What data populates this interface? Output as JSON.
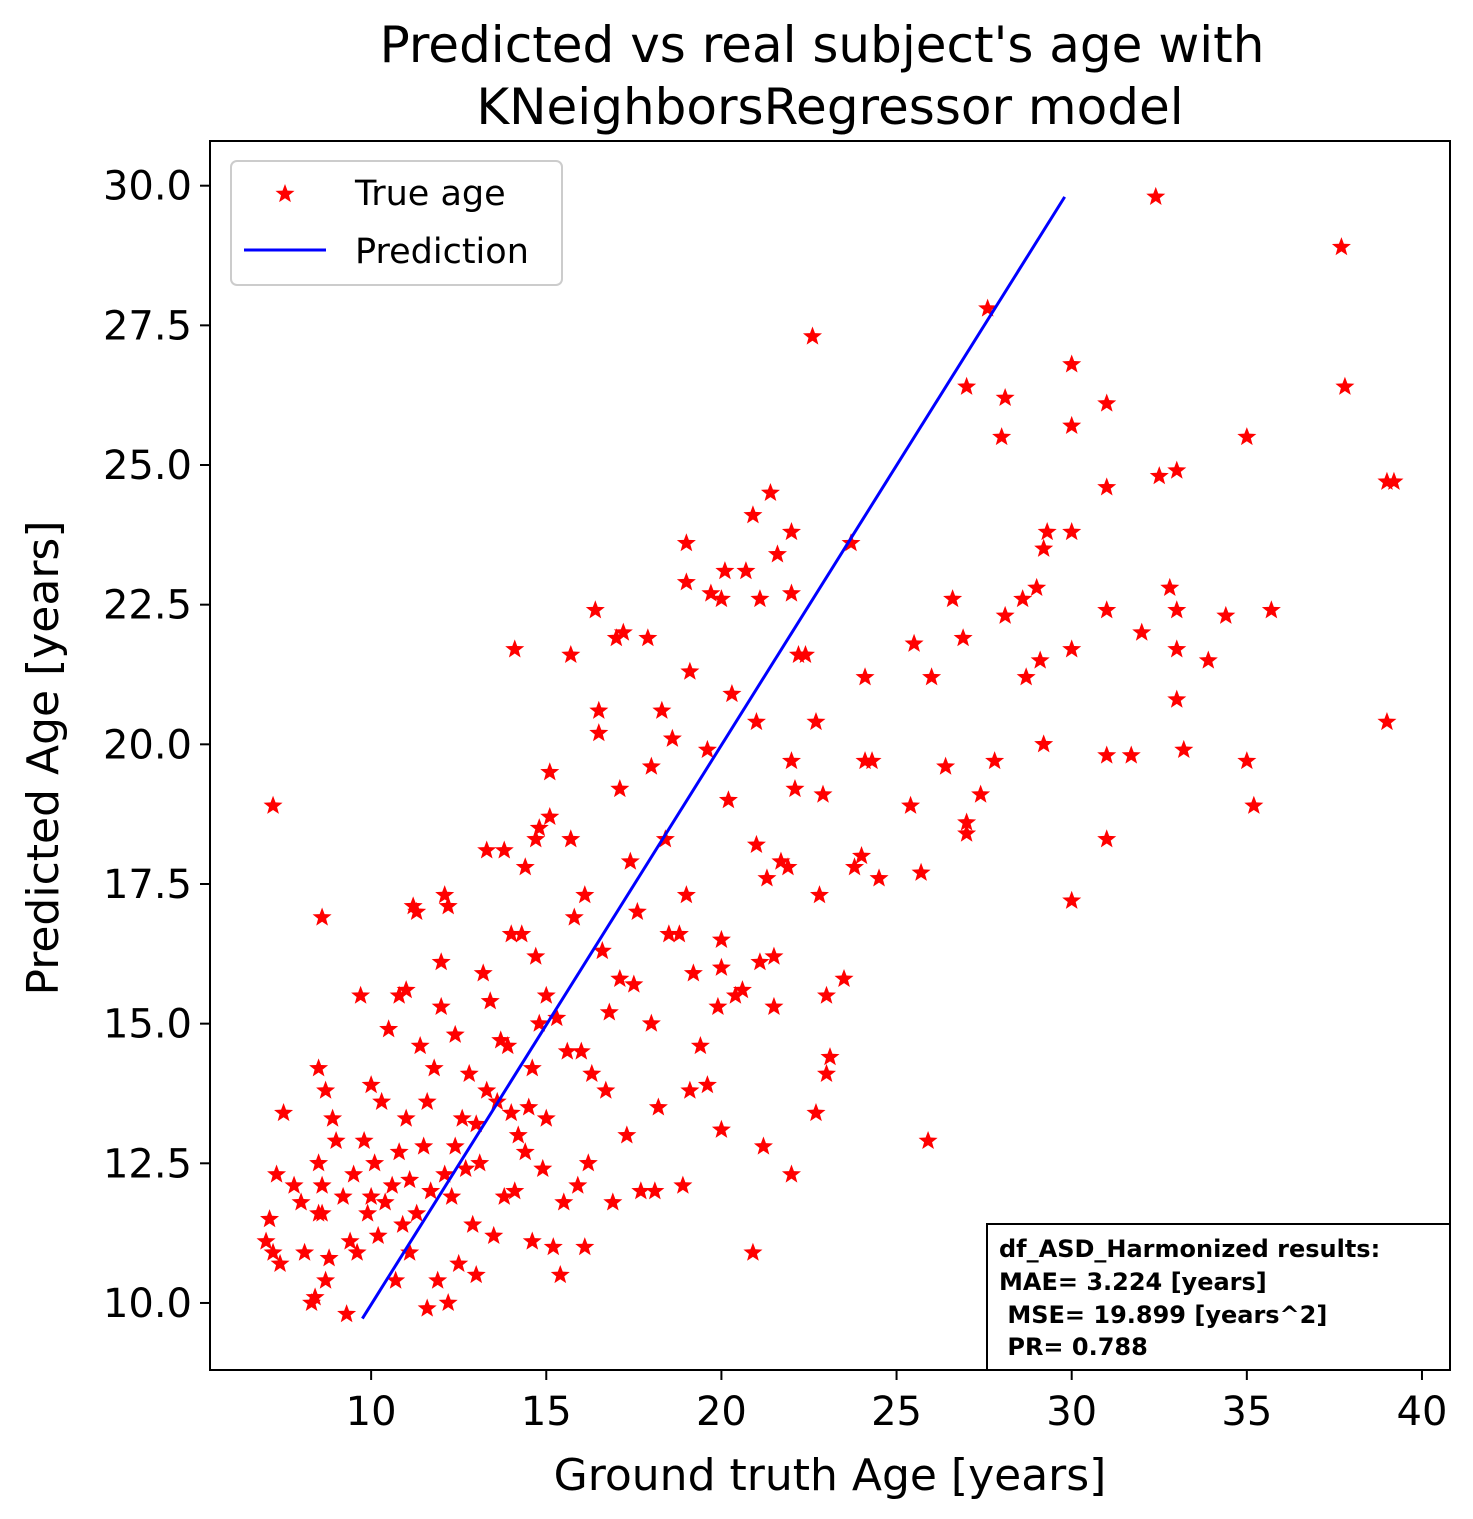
{
  "chart_data": {
    "type": "scatter",
    "title_lines": [
      "Predicted vs real subject's age with",
      "KNeighborsRegressor model"
    ],
    "xlabel": "Ground truth Age [years]",
    "ylabel": "Predicted Age [years]",
    "xlim": [
      5.4,
      40.8
    ],
    "ylim": [
      8.8,
      30.8
    ],
    "xticks": [
      10,
      15,
      20,
      25,
      30,
      35,
      40
    ],
    "xtick_labels": [
      "10",
      "15",
      "20",
      "25",
      "30",
      "35",
      "40"
    ],
    "yticks": [
      10.0,
      12.5,
      15.0,
      17.5,
      20.0,
      22.5,
      25.0,
      27.5,
      30.0
    ],
    "ytick_labels": [
      "10.0",
      "12.5",
      "15.0",
      "17.5",
      "20.0",
      "22.5",
      "25.0",
      "27.5",
      "30.0"
    ],
    "grid": false,
    "legend": {
      "placement": "upper-left",
      "entries": [
        {
          "label": "True age",
          "marker": "star",
          "color": "#ff0000"
        },
        {
          "label": "Prediction",
          "marker": "line",
          "color": "#0000ff"
        }
      ]
    },
    "series": [
      {
        "name": "True age",
        "marker": "star",
        "color": "#ff0000",
        "points": [
          [
            7.2,
            18.9
          ],
          [
            7.0,
            11.1
          ],
          [
            7.2,
            10.9
          ],
          [
            7.1,
            11.5
          ],
          [
            7.3,
            12.3
          ],
          [
            7.4,
            10.7
          ],
          [
            7.5,
            13.4
          ],
          [
            7.8,
            12.1
          ],
          [
            8.0,
            11.8
          ],
          [
            8.1,
            10.9
          ],
          [
            8.3,
            10.0
          ],
          [
            8.4,
            10.1
          ],
          [
            8.5,
            11.6
          ],
          [
            8.6,
            11.6
          ],
          [
            8.7,
            10.4
          ],
          [
            8.8,
            10.8
          ],
          [
            8.5,
            12.5
          ],
          [
            8.6,
            12.1
          ],
          [
            8.5,
            14.2
          ],
          [
            8.7,
            13.8
          ],
          [
            8.6,
            16.9
          ],
          [
            8.9,
            13.3
          ],
          [
            9.0,
            12.9
          ],
          [
            9.2,
            11.9
          ],
          [
            9.3,
            9.8
          ],
          [
            9.4,
            11.1
          ],
          [
            9.5,
            12.3
          ],
          [
            9.6,
            10.9
          ],
          [
            9.7,
            15.5
          ],
          [
            9.8,
            12.9
          ],
          [
            9.9,
            11.6
          ],
          [
            10.0,
            11.9
          ],
          [
            10.0,
            13.9
          ],
          [
            10.1,
            12.5
          ],
          [
            10.2,
            11.2
          ],
          [
            10.3,
            13.6
          ],
          [
            10.4,
            11.8
          ],
          [
            10.5,
            14.9
          ],
          [
            10.6,
            12.1
          ],
          [
            10.7,
            10.4
          ],
          [
            10.8,
            12.7
          ],
          [
            10.8,
            15.5
          ],
          [
            10.9,
            11.4
          ],
          [
            11.0,
            13.3
          ],
          [
            11.0,
            15.6
          ],
          [
            11.1,
            10.9
          ],
          [
            11.1,
            12.2
          ],
          [
            11.2,
            17.1
          ],
          [
            11.3,
            11.6
          ],
          [
            11.3,
            17.0
          ],
          [
            11.4,
            14.6
          ],
          [
            11.5,
            12.8
          ],
          [
            11.6,
            9.9
          ],
          [
            11.6,
            13.6
          ],
          [
            11.7,
            12.0
          ],
          [
            11.8,
            14.2
          ],
          [
            11.9,
            10.4
          ],
          [
            12.0,
            15.3
          ],
          [
            12.0,
            16.1
          ],
          [
            12.1,
            12.3
          ],
          [
            12.1,
            17.3
          ],
          [
            12.2,
            10.0
          ],
          [
            12.2,
            17.1
          ],
          [
            12.3,
            11.9
          ],
          [
            12.4,
            12.8
          ],
          [
            12.4,
            14.8
          ],
          [
            12.5,
            10.7
          ],
          [
            12.6,
            13.3
          ],
          [
            12.7,
            12.4
          ],
          [
            12.8,
            14.1
          ],
          [
            12.9,
            11.4
          ],
          [
            13.0,
            13.2
          ],
          [
            13.0,
            10.5
          ],
          [
            13.1,
            12.5
          ],
          [
            13.2,
            15.9
          ],
          [
            13.3,
            13.8
          ],
          [
            13.3,
            18.1
          ],
          [
            13.4,
            15.4
          ],
          [
            13.5,
            11.2
          ],
          [
            13.6,
            13.6
          ],
          [
            13.7,
            14.7
          ],
          [
            13.8,
            18.1
          ],
          [
            13.8,
            11.9
          ],
          [
            13.9,
            14.6
          ],
          [
            14.0,
            13.4
          ],
          [
            14.0,
            16.6
          ],
          [
            14.1,
            12.0
          ],
          [
            14.1,
            21.7
          ],
          [
            14.2,
            13.0
          ],
          [
            14.3,
            16.6
          ],
          [
            14.4,
            12.7
          ],
          [
            14.4,
            17.8
          ],
          [
            14.5,
            13.5
          ],
          [
            14.6,
            14.2
          ],
          [
            14.6,
            11.1
          ],
          [
            14.7,
            18.3
          ],
          [
            14.7,
            16.2
          ],
          [
            14.8,
            18.5
          ],
          [
            14.8,
            15.0
          ],
          [
            14.9,
            12.4
          ],
          [
            15.0,
            15.5
          ],
          [
            15.0,
            13.3
          ],
          [
            15.1,
            19.5
          ],
          [
            15.1,
            18.7
          ],
          [
            15.2,
            11.0
          ],
          [
            15.3,
            15.1
          ],
          [
            15.4,
            10.5
          ],
          [
            15.5,
            11.8
          ],
          [
            15.6,
            14.5
          ],
          [
            15.7,
            21.6
          ],
          [
            15.7,
            18.3
          ],
          [
            15.8,
            16.9
          ],
          [
            15.9,
            12.1
          ],
          [
            16.0,
            14.5
          ],
          [
            16.1,
            17.3
          ],
          [
            16.1,
            11.0
          ],
          [
            16.2,
            12.5
          ],
          [
            16.3,
            14.1
          ],
          [
            16.4,
            22.4
          ],
          [
            16.5,
            20.2
          ],
          [
            16.5,
            20.6
          ],
          [
            16.6,
            16.3
          ],
          [
            16.7,
            13.8
          ],
          [
            16.8,
            15.2
          ],
          [
            16.9,
            11.8
          ],
          [
            17.0,
            21.9
          ],
          [
            17.1,
            19.2
          ],
          [
            17.1,
            15.8
          ],
          [
            17.2,
            22.0
          ],
          [
            17.3,
            13.0
          ],
          [
            17.4,
            17.9
          ],
          [
            17.5,
            15.7
          ],
          [
            17.6,
            17.0
          ],
          [
            17.7,
            12.0
          ],
          [
            17.9,
            21.9
          ],
          [
            18.0,
            19.6
          ],
          [
            18.0,
            15.0
          ],
          [
            18.1,
            12.0
          ],
          [
            18.2,
            13.5
          ],
          [
            18.3,
            20.6
          ],
          [
            18.4,
            18.3
          ],
          [
            18.5,
            16.6
          ],
          [
            18.6,
            20.1
          ],
          [
            18.8,
            16.6
          ],
          [
            18.9,
            12.1
          ],
          [
            19.0,
            23.6
          ],
          [
            19.0,
            22.9
          ],
          [
            19.0,
            17.3
          ],
          [
            19.1,
            21.3
          ],
          [
            19.1,
            13.8
          ],
          [
            19.2,
            15.9
          ],
          [
            19.4,
            14.6
          ],
          [
            19.6,
            13.9
          ],
          [
            19.6,
            19.9
          ],
          [
            19.7,
            22.7
          ],
          [
            19.9,
            15.3
          ],
          [
            20.0,
            22.6
          ],
          [
            20.0,
            16.0
          ],
          [
            20.0,
            13.1
          ],
          [
            20.0,
            16.5
          ],
          [
            20.1,
            23.1
          ],
          [
            20.2,
            19.0
          ],
          [
            20.3,
            20.9
          ],
          [
            20.4,
            15.5
          ],
          [
            20.6,
            15.6
          ],
          [
            20.7,
            23.1
          ],
          [
            20.9,
            24.1
          ],
          [
            20.9,
            10.9
          ],
          [
            21.0,
            20.4
          ],
          [
            21.0,
            18.2
          ],
          [
            21.1,
            22.6
          ],
          [
            21.1,
            16.1
          ],
          [
            21.2,
            12.8
          ],
          [
            21.3,
            17.6
          ],
          [
            21.4,
            24.5
          ],
          [
            21.5,
            15.3
          ],
          [
            21.5,
            16.2
          ],
          [
            21.6,
            23.4
          ],
          [
            21.7,
            17.9
          ],
          [
            21.9,
            17.8
          ],
          [
            22.0,
            23.8
          ],
          [
            22.0,
            22.7
          ],
          [
            22.0,
            19.7
          ],
          [
            22.1,
            19.2
          ],
          [
            22.0,
            12.3
          ],
          [
            22.2,
            21.6
          ],
          [
            22.4,
            21.6
          ],
          [
            22.6,
            27.3
          ],
          [
            22.7,
            20.4
          ],
          [
            22.7,
            13.4
          ],
          [
            22.8,
            17.3
          ],
          [
            22.9,
            19.1
          ],
          [
            23.0,
            14.1
          ],
          [
            23.0,
            15.5
          ],
          [
            23.1,
            14.4
          ],
          [
            23.5,
            15.8
          ],
          [
            23.7,
            23.6
          ],
          [
            23.8,
            17.8
          ],
          [
            24.0,
            18.0
          ],
          [
            24.1,
            21.2
          ],
          [
            24.1,
            19.7
          ],
          [
            24.3,
            19.7
          ],
          [
            24.5,
            17.6
          ],
          [
            25.4,
            18.9
          ],
          [
            25.5,
            21.8
          ],
          [
            25.7,
            17.7
          ],
          [
            25.9,
            12.9
          ],
          [
            26.0,
            21.2
          ],
          [
            26.4,
            19.6
          ],
          [
            26.6,
            22.6
          ],
          [
            26.9,
            21.9
          ],
          [
            27.0,
            26.4
          ],
          [
            27.0,
            18.6
          ],
          [
            27.0,
            18.4
          ],
          [
            27.4,
            19.1
          ],
          [
            27.6,
            27.8
          ],
          [
            27.8,
            19.7
          ],
          [
            28.0,
            25.5
          ],
          [
            28.1,
            26.2
          ],
          [
            28.1,
            22.3
          ],
          [
            28.6,
            22.6
          ],
          [
            28.7,
            21.2
          ],
          [
            29.0,
            22.8
          ],
          [
            29.1,
            21.5
          ],
          [
            29.2,
            23.5
          ],
          [
            29.2,
            20.0
          ],
          [
            29.3,
            23.8
          ],
          [
            30.0,
            26.8
          ],
          [
            30.0,
            25.7
          ],
          [
            30.0,
            23.8
          ],
          [
            30.0,
            21.7
          ],
          [
            30.0,
            17.2
          ],
          [
            31.0,
            26.1
          ],
          [
            31.0,
            24.6
          ],
          [
            31.0,
            22.4
          ],
          [
            31.0,
            19.8
          ],
          [
            31.0,
            18.3
          ],
          [
            31.7,
            19.8
          ],
          [
            32.0,
            22.0
          ],
          [
            32.4,
            29.8
          ],
          [
            32.5,
            24.8
          ],
          [
            32.8,
            22.8
          ],
          [
            33.0,
            24.9
          ],
          [
            33.0,
            22.4
          ],
          [
            33.0,
            21.7
          ],
          [
            33.0,
            20.8
          ],
          [
            33.2,
            19.9
          ],
          [
            33.9,
            21.5
          ],
          [
            34.4,
            22.3
          ],
          [
            35.0,
            25.5
          ],
          [
            35.0,
            19.7
          ],
          [
            35.2,
            18.9
          ],
          [
            35.7,
            22.4
          ],
          [
            37.7,
            28.9
          ],
          [
            37.8,
            26.4
          ],
          [
            39.0,
            20.4
          ],
          [
            39.0,
            24.7
          ],
          [
            39.2,
            24.7
          ]
        ]
      },
      {
        "name": "Prediction",
        "marker": "line",
        "color": "#0000ff",
        "points": [
          [
            9.75,
            9.72
          ],
          [
            29.8,
            29.8
          ]
        ]
      }
    ]
  },
  "stats_box": {
    "lines": [
      "df_ASD_Harmonized results:",
      "MAE= 3.224 [years]",
      " MSE= 19.899 [years^2]",
      " PR= 0.788"
    ]
  }
}
